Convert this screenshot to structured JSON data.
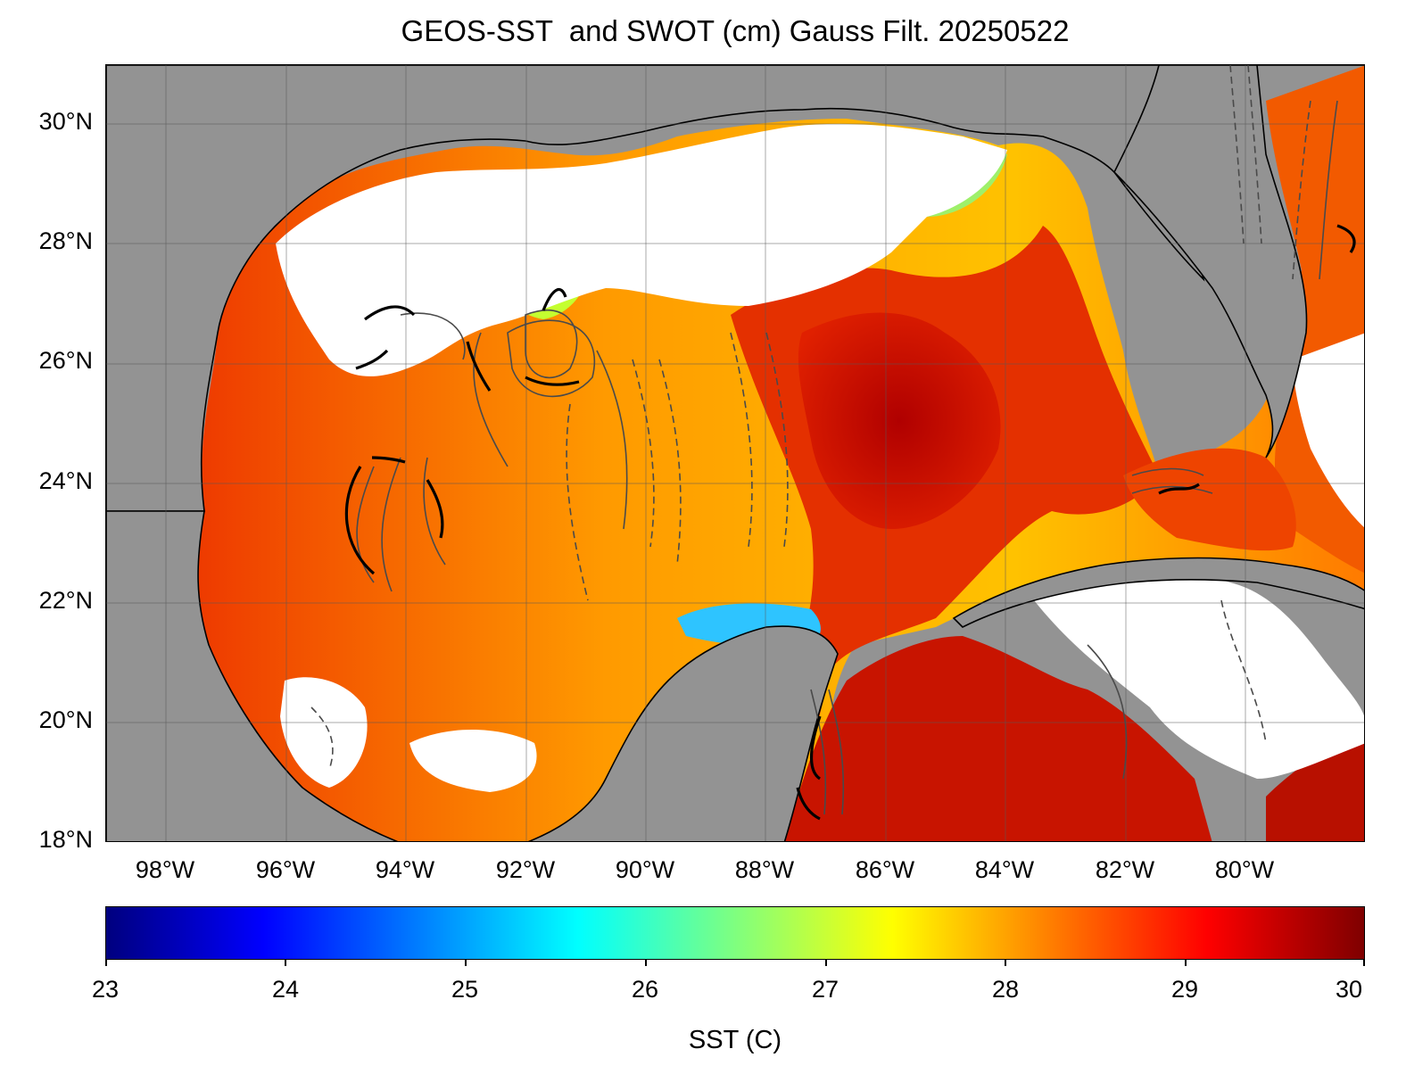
{
  "title": "GEOS-SST  and SWOT (cm) Gauss Filt. 20250522",
  "map": {
    "lat_ticks": [
      "30°N",
      "28°N",
      "26°N",
      "24°N",
      "22°N",
      "20°N",
      "18°N"
    ],
    "lon_ticks": [
      "98°W",
      "96°W",
      "94°W",
      "92°W",
      "90°W",
      "88°W",
      "86°W",
      "84°W",
      "82°W",
      "80°W"
    ],
    "lat_values": [
      30,
      28,
      26,
      24,
      22,
      20,
      18
    ],
    "lon_values": [
      -98,
      -96,
      -94,
      -92,
      -90,
      -88,
      -86,
      -84,
      -82,
      -80
    ],
    "lat_range": [
      18,
      31
    ],
    "lon_range": [
      -99,
      -78
    ],
    "land_color": "#939393",
    "nodata_color": "#ffffff",
    "grid": true
  },
  "colorbar": {
    "label": "SST (C)",
    "ticks": [
      "23",
      "24",
      "25",
      "26",
      "27",
      "28",
      "29",
      "30"
    ],
    "range": [
      23,
      30
    ],
    "colormap": "jet",
    "colors": [
      "#00007f",
      "#0000ff",
      "#007fff",
      "#00ffff",
      "#7fff7f",
      "#ffff00",
      "#ff7f00",
      "#ff0000",
      "#7f0000"
    ]
  }
}
